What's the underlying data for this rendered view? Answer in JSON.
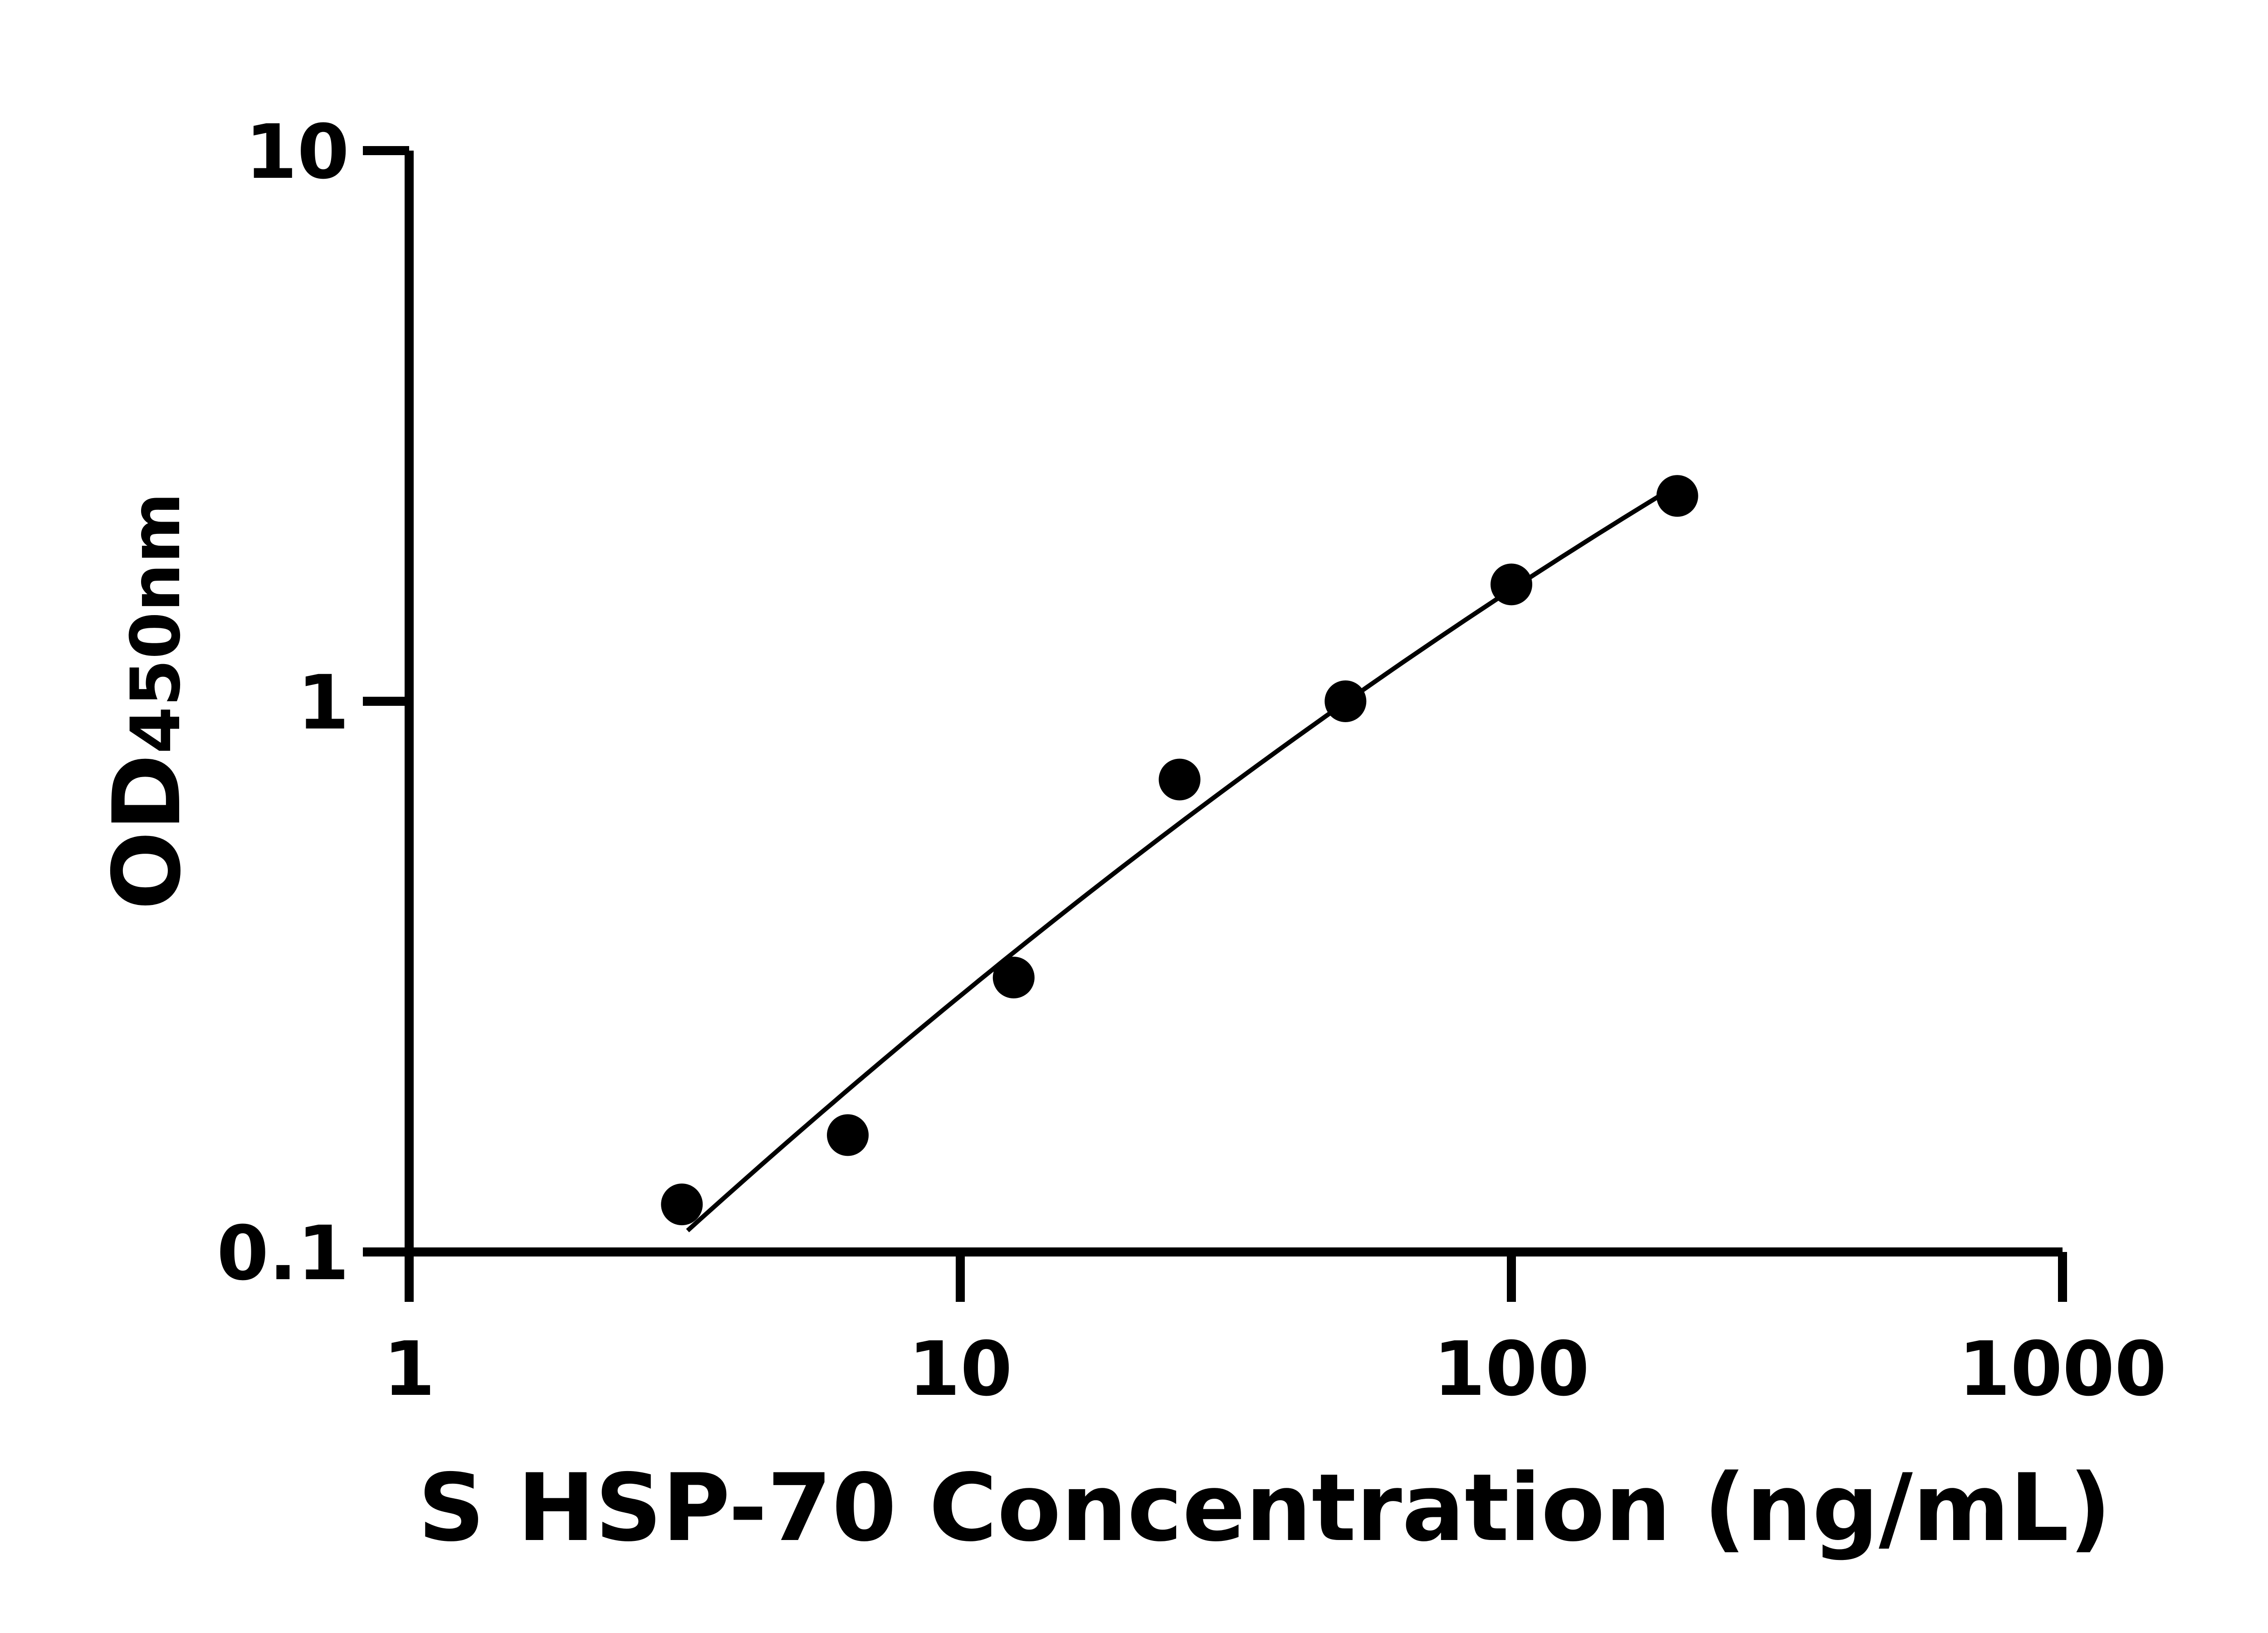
{
  "chart_data": {
    "type": "scatter",
    "title": "",
    "xlabel": "S HSP-70 Concentration (ng/mL)",
    "ylabel_main": "OD",
    "ylabel_sub": "450nm",
    "x_scale": "log",
    "y_scale": "log",
    "xlim": [
      1,
      1000
    ],
    "ylim": [
      0.1,
      10
    ],
    "x_ticks": [
      "1",
      "10",
      "100",
      "1000"
    ],
    "y_ticks": [
      "0.1",
      "1",
      "10"
    ],
    "grid": false,
    "fit_curve": true,
    "color": "#000000",
    "points": [
      {
        "x": 3.125,
        "y": 0.122
      },
      {
        "x": 6.25,
        "y": 0.163
      },
      {
        "x": 12.5,
        "y": 0.315
      },
      {
        "x": 25,
        "y": 0.721
      },
      {
        "x": 50,
        "y": 1.0
      },
      {
        "x": 100,
        "y": 1.63
      },
      {
        "x": 200,
        "y": 2.36
      }
    ]
  }
}
